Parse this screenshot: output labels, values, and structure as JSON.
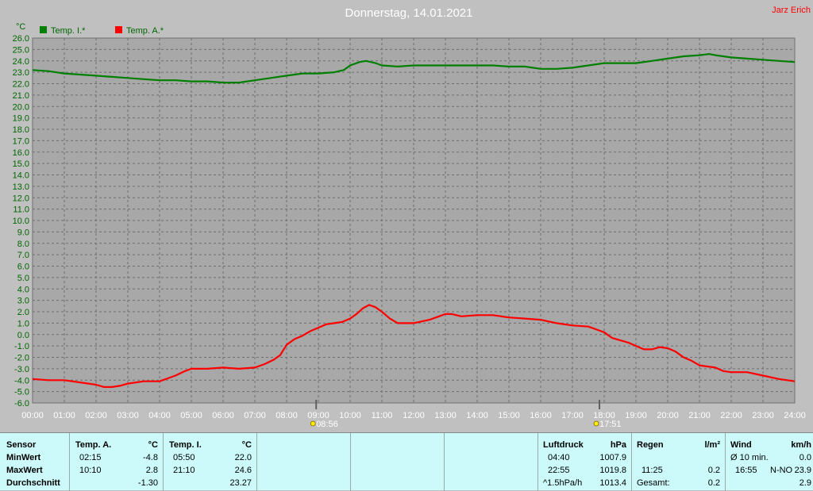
{
  "header": {
    "title": "Donnerstag, 14.01.2021",
    "author": "Jarz Erich"
  },
  "colors": {
    "background": "#c0c0c0",
    "plot_bg": "#a8a8a8",
    "series_green": "#007f00",
    "series_red": "#ff0000",
    "panel_bg": "#ccfafa",
    "axis_text": "#006600"
  },
  "chart_data": {
    "type": "line",
    "ylabel": "°C",
    "ylim": [
      -6.0,
      26.0
    ],
    "y_ticks": [
      "26.0",
      "25.0",
      "24.0",
      "23.0",
      "22.0",
      "21.0",
      "20.0",
      "19.0",
      "18.0",
      "17.0",
      "16.0",
      "15.0",
      "14.0",
      "13.0",
      "12.0",
      "11.0",
      "10.0",
      "9.0",
      "8.0",
      "7.0",
      "6.0",
      "5.0",
      "4.0",
      "3.0",
      "2.0",
      "1.0",
      "0.0",
      "-1.0",
      "-2.0",
      "-3.0",
      "-4.0",
      "-5.0",
      "-6.0"
    ],
    "x_ticks": [
      "00:00",
      "01:00",
      "02:00",
      "03:00",
      "04:00",
      "05:00",
      "06:00",
      "07:00",
      "08:00",
      "09:00",
      "10:00",
      "11:00",
      "12:00",
      "13:00",
      "14:00",
      "15:00",
      "16:00",
      "17:00",
      "18:00",
      "19:00",
      "20:00",
      "21:00",
      "22:00",
      "23:00",
      "24:00"
    ],
    "xlim": [
      0,
      24
    ],
    "grid": true,
    "legend": "top-left",
    "markers": [
      {
        "x": 8.93,
        "label": "08:56"
      },
      {
        "x": 17.85,
        "label": "17:51"
      }
    ],
    "series": [
      {
        "name": "Temp. I.*",
        "color": "#007f00",
        "x": [
          0,
          0.5,
          1,
          1.5,
          2,
          2.5,
          3,
          3.5,
          4,
          4.5,
          5,
          5.5,
          6,
          6.5,
          7,
          7.5,
          8,
          8.5,
          9,
          9.5,
          9.8,
          10,
          10.3,
          10.5,
          10.8,
          11,
          11.5,
          12,
          12.5,
          13,
          13.5,
          14,
          14.5,
          15,
          15.5,
          16,
          16.5,
          17,
          17.5,
          18,
          18.5,
          19,
          19.5,
          20,
          20.5,
          21,
          21.3,
          21.5,
          22,
          22.5,
          23,
          23.5,
          24
        ],
        "y": [
          23.2,
          23.1,
          22.9,
          22.8,
          22.7,
          22.6,
          22.5,
          22.4,
          22.3,
          22.3,
          22.2,
          22.2,
          22.1,
          22.1,
          22.3,
          22.5,
          22.7,
          22.9,
          22.9,
          23.0,
          23.2,
          23.6,
          23.9,
          24.0,
          23.8,
          23.6,
          23.5,
          23.6,
          23.6,
          23.6,
          23.6,
          23.6,
          23.6,
          23.5,
          23.5,
          23.3,
          23.3,
          23.4,
          23.6,
          23.8,
          23.8,
          23.8,
          24.0,
          24.2,
          24.4,
          24.5,
          24.6,
          24.5,
          24.3,
          24.2,
          24.1,
          24.0,
          23.9
        ]
      },
      {
        "name": "Temp. A.*",
        "color": "#ff0000",
        "x": [
          0,
          0.5,
          1,
          1.5,
          2,
          2.25,
          2.5,
          2.75,
          3,
          3.5,
          4,
          4.5,
          4.8,
          5,
          5.5,
          6,
          6.5,
          7,
          7.3,
          7.6,
          7.8,
          8,
          8.25,
          8.5,
          8.75,
          9,
          9.25,
          9.5,
          9.75,
          10,
          10.2,
          10.4,
          10.6,
          10.8,
          11,
          11.25,
          11.5,
          12,
          12.5,
          12.8,
          13,
          13.2,
          13.5,
          14,
          14.5,
          15,
          15.5,
          16,
          16.5,
          17,
          17.5,
          18,
          18.25,
          18.5,
          18.75,
          19,
          19.25,
          19.5,
          19.75,
          20,
          20.25,
          20.5,
          20.75,
          21,
          21.25,
          21.5,
          21.75,
          22,
          22.25,
          22.5,
          23,
          23.5,
          24
        ],
        "y": [
          -3.9,
          -4.0,
          -4.0,
          -4.2,
          -4.4,
          -4.6,
          -4.6,
          -4.5,
          -4.3,
          -4.1,
          -4.1,
          -3.6,
          -3.2,
          -3.0,
          -3.0,
          -2.9,
          -3.0,
          -2.9,
          -2.6,
          -2.2,
          -1.8,
          -0.9,
          -0.4,
          -0.1,
          0.3,
          0.6,
          0.9,
          1.0,
          1.1,
          1.4,
          1.8,
          2.3,
          2.6,
          2.4,
          2.0,
          1.4,
          1.0,
          1.0,
          1.3,
          1.6,
          1.8,
          1.8,
          1.6,
          1.7,
          1.7,
          1.5,
          1.4,
          1.3,
          1.0,
          0.8,
          0.7,
          0.2,
          -0.3,
          -0.5,
          -0.7,
          -1.0,
          -1.3,
          -1.3,
          -1.1,
          -1.2,
          -1.5,
          -2.0,
          -2.3,
          -2.7,
          -2.8,
          -2.9,
          -3.2,
          -3.3,
          -3.3,
          -3.3,
          -3.6,
          -3.9,
          -4.1
        ]
      }
    ]
  },
  "stats": {
    "sensor": {
      "header": "Sensor",
      "min": "MinWert",
      "max": "MaxWert",
      "avg": "Durchschnitt"
    },
    "temp_a": {
      "header": "Temp. A.",
      "unit": "°C",
      "min_time": "02:15",
      "min_val": "-4.8",
      "max_time": "10:10",
      "max_val": "2.8",
      "avg_val": "-1.30"
    },
    "temp_i": {
      "header": "Temp. I.",
      "unit": "°C",
      "min_time": "05:50",
      "min_val": "22.0",
      "max_time": "21:10",
      "max_val": "24.6",
      "avg_val": "23.27"
    },
    "pressure": {
      "header": "Luftdruck",
      "unit": "hPa",
      "min_time": "04:40",
      "min_val": "1007.9",
      "max_time": "22:55",
      "max_val": "1019.8",
      "trend_label": "^1.5hPa/h",
      "trend_val": "1013.4"
    },
    "rain": {
      "header": "Regen",
      "unit": "l/m²",
      "time": "11:25",
      "val": "0.2",
      "total_label": "Gesamt:",
      "total_val": "0.2"
    },
    "wind": {
      "header": "Wind",
      "unit": "km/h",
      "avg_label": "Ø 10 min.",
      "avg_val": "0.0",
      "max_time": "16:55",
      "max_dir": "N-NO",
      "max_val": "23.9",
      "last_val": "2.9"
    }
  }
}
